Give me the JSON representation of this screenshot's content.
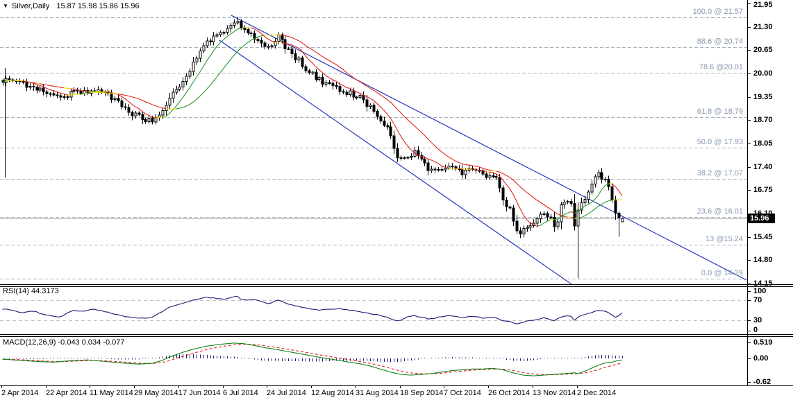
{
  "header": {
    "dropdown_icon": "▼",
    "symbol": "Silver,Daily",
    "quotes": "15.87 15.98 15.86 15.96"
  },
  "rsi_label": {
    "name": "RSI(14)",
    "value": "44.3173"
  },
  "macd_label": {
    "name": "MACD(12,26,9)",
    "values": "-0.043 0.034 -0.077"
  },
  "price_axis": {
    "current_label": "15.96"
  },
  "colors": {
    "background": "#ffffff",
    "bull_fill": "#ffffff",
    "bear_fill": "#000000",
    "candle_outline": "#000000",
    "ma_up": "#27962b",
    "ma_down": "#e3211c",
    "ma_flat": "#f0dc00",
    "trendline": "#2438bd",
    "fib_line": "#a8b0ba",
    "fib_text": "#8598b0",
    "level_dash": "#c3c3c3",
    "rsi_line": "#191970",
    "histogram": "#191970",
    "macd_line": "#0e7d12",
    "signal_line": "#d6201f",
    "current_line": "#b8b8b8",
    "axis_line": "#000000"
  },
  "chart_data": {
    "type": "candlestick",
    "title": "Silver,Daily",
    "symbol": "Silver",
    "timeframe": "Daily",
    "current_ohlc": {
      "open": 15.87,
      "high": 15.98,
      "low": 15.86,
      "close": 15.96
    },
    "current_price": 15.96,
    "x_axis": {
      "labels": [
        "2 Apr 2014",
        "22 Apr 2014",
        "11 May 2014",
        "29 May 2014",
        "17 Jun 2014",
        "6 Jul 2014",
        "24 Jul 2014",
        "12 Aug 2014",
        "31 Aug 2014",
        "18 Sep 2014",
        "7 Oct 2014",
        "26 Oct 2014",
        "13 Nov 2014",
        "2 Dec 2014"
      ],
      "label_bar_index": [
        0,
        13,
        26,
        39,
        52,
        65,
        78,
        91,
        104,
        117,
        130,
        143,
        156,
        169
      ],
      "bars_total": 183
    },
    "y_axis": {
      "ticks": [
        "21.95",
        "21.30",
        "20.65",
        "20.00",
        "19.35",
        "18.70",
        "18.05",
        "17.40",
        "16.75",
        "16.10",
        "15.45",
        "14.80",
        "14.15"
      ],
      "tick_values": [
        21.95,
        21.3,
        20.65,
        20.0,
        19.35,
        18.7,
        18.05,
        17.4,
        16.75,
        16.1,
        15.45,
        14.8,
        14.15
      ],
      "range": [
        14.15,
        21.95
      ]
    },
    "fibonacci_levels": [
      {
        "label": "100.0 @ 21.57",
        "value": 21.57
      },
      {
        "label": "88.6 @ 20.74",
        "value": 20.74
      },
      {
        "label": "78.6 @20.01",
        "value": 20.01
      },
      {
        "label": "61.8 @ 18.79",
        "value": 18.79
      },
      {
        "label": "50.0 @ 17.93",
        "value": 17.93
      },
      {
        "label": "38.2 @ 17.07",
        "value": 17.07
      },
      {
        "label": "23.6 @ 16.01",
        "value": 16.01
      },
      {
        "label": "13 @15.24",
        "value": 15.24
      },
      {
        "label": "0.0 @ 14.29",
        "value": 14.29
      }
    ],
    "trendlines": [
      {
        "from": {
          "bar": 67.2,
          "price": 21.62
        },
        "to": {
          "bar": 218.5,
          "price": 14.25
        }
      },
      {
        "from": {
          "bar": 63.7,
          "price": 20.93
        },
        "to": {
          "bar": 167.8,
          "price": 14.09
        }
      }
    ],
    "vertical_line": {
      "bar": 0.7,
      "from_price": 20.15,
      "to_price": 17.1
    },
    "close_path_anchors": [
      [
        0,
        19.78
      ],
      [
        3,
        19.85
      ],
      [
        6,
        19.7
      ],
      [
        9,
        19.62
      ],
      [
        12,
        19.5
      ],
      [
        15,
        19.42
      ],
      [
        17,
        19.28
      ],
      [
        19,
        19.38
      ],
      [
        21,
        19.52
      ],
      [
        24,
        19.5
      ],
      [
        27,
        19.56
      ],
      [
        30,
        19.45
      ],
      [
        33,
        19.28
      ],
      [
        36,
        18.98
      ],
      [
        39,
        18.82
      ],
      [
        42,
        18.72
      ],
      [
        44,
        18.7
      ],
      [
        46,
        18.82
      ],
      [
        48,
        19.1
      ],
      [
        50,
        19.45
      ],
      [
        52,
        19.7
      ],
      [
        54,
        19.95
      ],
      [
        56,
        20.28
      ],
      [
        58,
        20.6
      ],
      [
        60,
        20.88
      ],
      [
        62,
        21.02
      ],
      [
        64,
        21.12
      ],
      [
        66,
        21.22
      ],
      [
        68,
        21.35
      ],
      [
        69,
        21.44
      ],
      [
        70,
        21.3
      ],
      [
        72,
        21.12
      ],
      [
        74,
        21.0
      ],
      [
        76,
        20.88
      ],
      [
        78,
        20.68
      ],
      [
        80,
        20.92
      ],
      [
        81,
        21.02
      ],
      [
        83,
        20.72
      ],
      [
        85,
        20.52
      ],
      [
        87,
        20.36
      ],
      [
        90,
        20.05
      ],
      [
        93,
        19.82
      ],
      [
        96,
        19.66
      ],
      [
        99,
        19.55
      ],
      [
        102,
        19.45
      ],
      [
        105,
        19.32
      ],
      [
        108,
        19.05
      ],
      [
        110,
        18.88
      ],
      [
        112,
        18.62
      ],
      [
        114,
        18.28
      ],
      [
        115,
        17.98
      ],
      [
        116,
        17.72
      ],
      [
        117,
        17.58
      ],
      [
        119,
        17.68
      ],
      [
        121,
        17.78
      ],
      [
        123,
        17.56
      ],
      [
        125,
        17.32
      ],
      [
        127,
        17.25
      ],
      [
        129,
        17.34
      ],
      [
        131,
        17.42
      ],
      [
        133,
        17.36
      ],
      [
        135,
        17.2
      ],
      [
        137,
        17.28
      ],
      [
        139,
        17.32
      ],
      [
        141,
        17.15
      ],
      [
        143,
        17.18
      ],
      [
        145,
        17.12
      ],
      [
        146,
        16.88
      ],
      [
        147,
        16.52
      ],
      [
        148,
        16.35
      ],
      [
        149,
        16.18
      ],
      [
        150,
        15.95
      ],
      [
        151,
        15.68
      ],
      [
        152,
        15.6
      ],
      [
        153,
        15.64
      ],
      [
        154,
        15.72
      ],
      [
        155,
        15.78
      ],
      [
        156,
        15.82
      ],
      [
        157,
        15.95
      ],
      [
        158,
        16.08
      ],
      [
        159,
        16.12
      ],
      [
        160,
        16.08
      ],
      [
        161,
        15.92
      ],
      [
        162,
        15.76
      ],
      [
        163,
        15.95
      ],
      [
        164,
        16.28
      ],
      [
        165,
        16.4
      ],
      [
        166,
        16.45
      ],
      [
        167,
        16.4
      ],
      [
        168,
        15.75
      ],
      [
        169,
        16.2
      ],
      [
        170,
        16.42
      ],
      [
        171,
        16.55
      ],
      [
        172,
        16.75
      ],
      [
        173,
        16.95
      ],
      [
        174,
        17.08
      ],
      [
        175,
        17.18
      ],
      [
        176,
        17.12
      ],
      [
        177,
        17.02
      ],
      [
        178,
        16.85
      ],
      [
        179,
        16.45
      ],
      [
        180,
        16.05
      ],
      [
        181,
        15.98
      ],
      [
        182,
        15.96
      ]
    ],
    "key_candles": {
      "69": {
        "high": 21.57
      },
      "168": {
        "close": 15.75
      },
      "169": {
        "low": 14.3,
        "close": 16.2
      },
      "181": {
        "low": 15.45
      },
      "182": {
        "open": 15.87,
        "high": 15.98,
        "low": 15.86,
        "close": 15.96
      }
    },
    "indicators": {
      "moving_averages": {
        "fast_window": 8,
        "slow_window": 20,
        "coloring": "green-up red-down yellow-flat"
      },
      "rsi": {
        "name": "RSI(14)",
        "value": 44.3173,
        "scale_ticks": [
          "100",
          "70",
          "30",
          "0"
        ],
        "scale_values": [
          100,
          70,
          30,
          0
        ],
        "dashed_levels": [
          70,
          30
        ],
        "path_anchors": [
          [
            0,
            52
          ],
          [
            3,
            50
          ],
          [
            6,
            45
          ],
          [
            9,
            48
          ],
          [
            12,
            42
          ],
          [
            15,
            38
          ],
          [
            17,
            36
          ],
          [
            19,
            44
          ],
          [
            21,
            50
          ],
          [
            24,
            48
          ],
          [
            27,
            52
          ],
          [
            30,
            47
          ],
          [
            33,
            42
          ],
          [
            36,
            37
          ],
          [
            39,
            35
          ],
          [
            42,
            34
          ],
          [
            44,
            36
          ],
          [
            46,
            44
          ],
          [
            48,
            52
          ],
          [
            50,
            58
          ],
          [
            52,
            62
          ],
          [
            54,
            66
          ],
          [
            56,
            70
          ],
          [
            58,
            73
          ],
          [
            60,
            76
          ],
          [
            62,
            74
          ],
          [
            64,
            72
          ],
          [
            66,
            73
          ],
          [
            68,
            76
          ],
          [
            69,
            78
          ],
          [
            70,
            73
          ],
          [
            72,
            70
          ],
          [
            74,
            71
          ],
          [
            76,
            68
          ],
          [
            78,
            63
          ],
          [
            80,
            68
          ],
          [
            81,
            70
          ],
          [
            83,
            64
          ],
          [
            85,
            60
          ],
          [
            87,
            58
          ],
          [
            90,
            53
          ],
          [
            93,
            50
          ],
          [
            96,
            52
          ],
          [
            99,
            54
          ],
          [
            102,
            50
          ],
          [
            105,
            47
          ],
          [
            108,
            43
          ],
          [
            110,
            41
          ],
          [
            112,
            38
          ],
          [
            114,
            33
          ],
          [
            115,
            31
          ],
          [
            116,
            29
          ],
          [
            117,
            30
          ],
          [
            119,
            36
          ],
          [
            121,
            40
          ],
          [
            123,
            36
          ],
          [
            125,
            33
          ],
          [
            127,
            34
          ],
          [
            129,
            37
          ],
          [
            131,
            39
          ],
          [
            133,
            38
          ],
          [
            135,
            35
          ],
          [
            137,
            37
          ],
          [
            139,
            38
          ],
          [
            141,
            34
          ],
          [
            143,
            36
          ],
          [
            145,
            35
          ],
          [
            146,
            32
          ],
          [
            147,
            29
          ],
          [
            148,
            28
          ],
          [
            149,
            27
          ],
          [
            150,
            25
          ],
          [
            151,
            23
          ],
          [
            152,
            24
          ],
          [
            153,
            26
          ],
          [
            154,
            28
          ],
          [
            155,
            29
          ],
          [
            156,
            30
          ],
          [
            157,
            32
          ],
          [
            158,
            34
          ],
          [
            159,
            35
          ],
          [
            160,
            34
          ],
          [
            161,
            31
          ],
          [
            162,
            29
          ],
          [
            163,
            33
          ],
          [
            164,
            37
          ],
          [
            165,
            38
          ],
          [
            166,
            39
          ],
          [
            167,
            38
          ],
          [
            168,
            30
          ],
          [
            169,
            36
          ],
          [
            170,
            39
          ],
          [
            171,
            41
          ],
          [
            172,
            44
          ],
          [
            173,
            46
          ],
          [
            174,
            48
          ],
          [
            175,
            50
          ],
          [
            176,
            49
          ],
          [
            177,
            48
          ],
          [
            178,
            45
          ],
          [
            179,
            40
          ],
          [
            180,
            36
          ],
          [
            181,
            40
          ],
          [
            182,
            44.3
          ]
        ]
      },
      "macd": {
        "name": "MACD(12,26,9)",
        "values": [
          -0.043,
          0.034,
          -0.077
        ],
        "scale_ticks": [
          "0.519",
          "0.00",
          "-0.62"
        ],
        "scale_values": [
          0.519,
          0,
          -0.62
        ],
        "macd_path_anchors": [
          [
            0,
            -0.02
          ],
          [
            5,
            -0.05
          ],
          [
            10,
            -0.08
          ],
          [
            15,
            -0.1
          ],
          [
            20,
            -0.06
          ],
          [
            25,
            -0.04
          ],
          [
            30,
            -0.08
          ],
          [
            35,
            -0.12
          ],
          [
            40,
            -0.15
          ],
          [
            44,
            -0.13
          ],
          [
            47,
            -0.05
          ],
          [
            50,
            0.08
          ],
          [
            53,
            0.2
          ],
          [
            56,
            0.3
          ],
          [
            60,
            0.4
          ],
          [
            64,
            0.46
          ],
          [
            68,
            0.5
          ],
          [
            71,
            0.48
          ],
          [
            74,
            0.42
          ],
          [
            77,
            0.35
          ],
          [
            80,
            0.3
          ],
          [
            83,
            0.24
          ],
          [
            86,
            0.18
          ],
          [
            90,
            0.1
          ],
          [
            94,
            0.02
          ],
          [
            98,
            -0.04
          ],
          [
            102,
            -0.1
          ],
          [
            105,
            -0.14
          ],
          [
            108,
            -0.2
          ],
          [
            111,
            -0.28
          ],
          [
            114,
            -0.36
          ],
          [
            117,
            -0.42
          ],
          [
            120,
            -0.44
          ],
          [
            123,
            -0.42
          ],
          [
            126,
            -0.4
          ],
          [
            129,
            -0.36
          ],
          [
            132,
            -0.32
          ],
          [
            135,
            -0.3
          ],
          [
            138,
            -0.28
          ],
          [
            141,
            -0.28
          ],
          [
            144,
            -0.26
          ],
          [
            147,
            -0.3
          ],
          [
            150,
            -0.38
          ],
          [
            153,
            -0.44
          ],
          [
            156,
            -0.46
          ],
          [
            159,
            -0.44
          ],
          [
            162,
            -0.42
          ],
          [
            165,
            -0.4
          ],
          [
            168,
            -0.38
          ],
          [
            169,
            -0.4
          ],
          [
            171,
            -0.34
          ],
          [
            173,
            -0.26
          ],
          [
            175,
            -0.18
          ],
          [
            177,
            -0.12
          ],
          [
            179,
            -0.1
          ],
          [
            181,
            -0.05
          ],
          [
            182,
            -0.043
          ]
        ],
        "signal": "EMA(9) of MACD line"
      }
    }
  }
}
